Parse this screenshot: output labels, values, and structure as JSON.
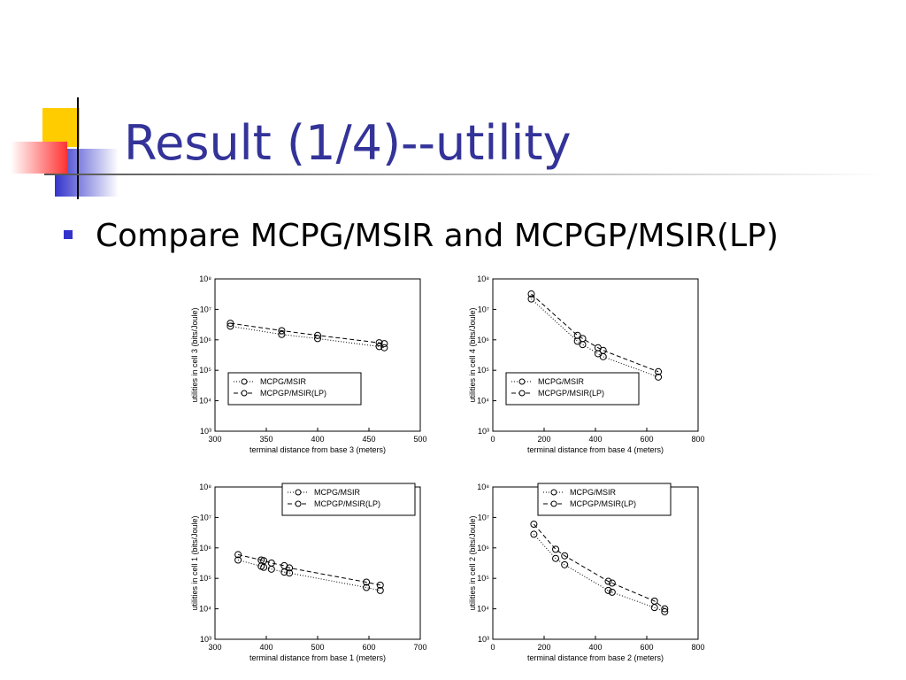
{
  "slide": {
    "title": "Result (1/4)--utility",
    "bullet": "Compare MCPG/MSIR and MCPGP/MSIR(LP)"
  },
  "chart_data": [
    {
      "type": "scatter",
      "xlabel": "terminal distance from base 3 (meters)",
      "ylabel": "utilities in cell 3 (bits/Joule)",
      "x": [
        315,
        365,
        400,
        460,
        465
      ],
      "series": [
        {
          "name": "MCPG/MSIR",
          "color": "#000000",
          "linestyle": "dotted",
          "values": [
            2800000,
            1500000,
            1100000,
            600000,
            550000
          ]
        },
        {
          "name": "MCPGP/MSIR(LP)",
          "color": "#000000",
          "linestyle": "dashed",
          "values": [
            3500000,
            2000000,
            1400000,
            800000,
            750000
          ]
        }
      ],
      "xlim": [
        300,
        500
      ],
      "xticks": [
        300,
        350,
        400,
        450,
        500
      ],
      "ylim": [
        1000,
        100000000
      ],
      "yscale": "log",
      "yticks": [
        {
          "value": 1000,
          "label": "10³"
        },
        {
          "value": 10000,
          "label": "10⁴"
        },
        {
          "value": 100000,
          "label": "10⁵"
        },
        {
          "value": 1000000,
          "label": "10⁶"
        },
        {
          "value": 10000000,
          "label": "10⁷"
        },
        {
          "value": 100000000,
          "label": "10⁸"
        }
      ],
      "legend": "lower left"
    },
    {
      "type": "scatter",
      "xlabel": "terminal distance from base 4 (meters)",
      "ylabel": "utilities in cell 4 (bits/Joule)",
      "x": [
        150,
        330,
        350,
        410,
        430,
        645
      ],
      "series": [
        {
          "name": "MCPG/MSIR",
          "color": "#000000",
          "linestyle": "dotted",
          "values": [
            22000000,
            900000,
            700000,
            350000,
            280000,
            60000
          ]
        },
        {
          "name": "MCPGP/MSIR(LP)",
          "color": "#000000",
          "linestyle": "dashed",
          "values": [
            32000000,
            1400000,
            1100000,
            550000,
            450000,
            90000
          ]
        }
      ],
      "xlim": [
        0,
        800
      ],
      "xticks": [
        0,
        200,
        400,
        600,
        800
      ],
      "ylim": [
        1000,
        100000000
      ],
      "yscale": "log",
      "yticks": [
        {
          "value": 1000,
          "label": "10³"
        },
        {
          "value": 10000,
          "label": "10⁴"
        },
        {
          "value": 100000,
          "label": "10⁵"
        },
        {
          "value": 1000000,
          "label": "10⁶"
        },
        {
          "value": 10000000,
          "label": "10⁷"
        },
        {
          "value": 100000000,
          "label": "10⁸"
        }
      ],
      "legend": "lower left"
    },
    {
      "type": "scatter",
      "xlabel": "terminal distance from base 1 (meters)",
      "ylabel": "utilities in cell 1 (bits/Joule)",
      "x": [
        345,
        390,
        395,
        410,
        435,
        445,
        595,
        622
      ],
      "series": [
        {
          "name": "MCPG/MSIR",
          "color": "#000000",
          "linestyle": "dotted",
          "values": [
            400000,
            250000,
            230000,
            200000,
            160000,
            150000,
            50000,
            40000
          ]
        },
        {
          "name": "MCPGP/MSIR(LP)",
          "color": "#000000",
          "linestyle": "dashed",
          "values": [
            600000,
            400000,
            380000,
            320000,
            260000,
            220000,
            75000,
            60000
          ]
        }
      ],
      "xlim": [
        300,
        700
      ],
      "xticks": [
        300,
        400,
        500,
        600,
        700
      ],
      "ylim": [
        1000,
        100000000
      ],
      "yscale": "log",
      "yticks": [
        {
          "value": 1000,
          "label": "10³"
        },
        {
          "value": 10000,
          "label": "10⁴"
        },
        {
          "value": 100000,
          "label": "10⁵"
        },
        {
          "value": 1000000,
          "label": "10⁶"
        },
        {
          "value": 10000000,
          "label": "10⁷"
        },
        {
          "value": 100000000,
          "label": "10⁸"
        }
      ],
      "legend": "upper right"
    },
    {
      "type": "scatter",
      "xlabel": "terminal distance from base 2 (meters)",
      "ylabel": "utilities in cell 2 (bits/Joule)",
      "x": [
        160,
        245,
        280,
        450,
        465,
        630,
        670
      ],
      "series": [
        {
          "name": "MCPG/MSIR",
          "color": "#000000",
          "linestyle": "dotted",
          "values": [
            2800000,
            450000,
            280000,
            40000,
            35000,
            11000,
            8000
          ]
        },
        {
          "name": "MCPGP/MSIR(LP)",
          "color": "#000000",
          "linestyle": "dashed",
          "values": [
            6000000,
            900000,
            550000,
            80000,
            70000,
            18000,
            10000
          ]
        }
      ],
      "xlim": [
        0,
        800
      ],
      "xticks": [
        0,
        200,
        400,
        600,
        800
      ],
      "ylim": [
        1000,
        100000000
      ],
      "yscale": "log",
      "yticks": [
        {
          "value": 1000,
          "label": "10³"
        },
        {
          "value": 10000,
          "label": "10⁴"
        },
        {
          "value": 100000,
          "label": "10⁵"
        },
        {
          "value": 1000000,
          "label": "10⁶"
        },
        {
          "value": 10000000,
          "label": "10⁷"
        },
        {
          "value": 100000000,
          "label": "10⁸"
        }
      ],
      "legend": "upper center"
    }
  ]
}
